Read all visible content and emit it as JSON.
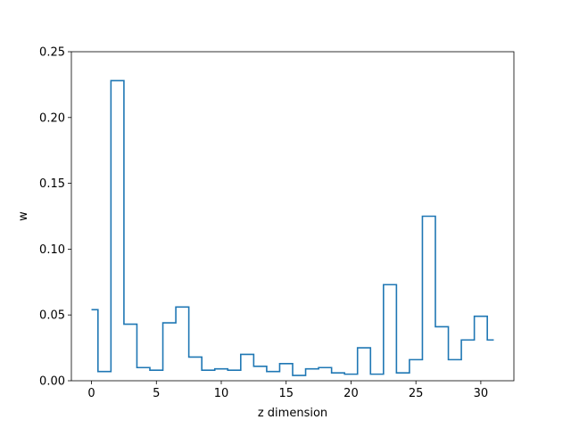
{
  "chart_data": {
    "type": "line",
    "drawstyle": "steps-mid",
    "xlabel": "z dimension",
    "ylabel": "w",
    "xlim": [
      -1.55,
      32.55
    ],
    "ylim": [
      0,
      0.25
    ],
    "xticks": [
      0,
      5,
      10,
      15,
      20,
      25,
      30
    ],
    "xtick_labels": [
      "0",
      "5",
      "10",
      "15",
      "20",
      "25",
      "30"
    ],
    "yticks": [
      0,
      0.05,
      0.1,
      0.15,
      0.2,
      0.25
    ],
    "ytick_labels": [
      "0.00",
      "0.05",
      "0.10",
      "0.15",
      "0.20",
      "0.25"
    ],
    "grid": false,
    "series": [
      {
        "color": "#1f77b4",
        "x": [
          0,
          1,
          2,
          3,
          4,
          5,
          6,
          7,
          8,
          9,
          10,
          11,
          12,
          13,
          14,
          15,
          16,
          17,
          18,
          19,
          20,
          21,
          22,
          23,
          24,
          25,
          26,
          27,
          28,
          29,
          30,
          31
        ],
        "y": [
          0.054,
          0.007,
          0.228,
          0.043,
          0.01,
          0.008,
          0.044,
          0.056,
          0.018,
          0.008,
          0.009,
          0.008,
          0.02,
          0.011,
          0.007,
          0.013,
          0.004,
          0.009,
          0.01,
          0.006,
          0.005,
          0.025,
          0.005,
          0.073,
          0.006,
          0.016,
          0.125,
          0.041,
          0.016,
          0.031,
          0.049,
          0.031
        ]
      }
    ]
  }
}
